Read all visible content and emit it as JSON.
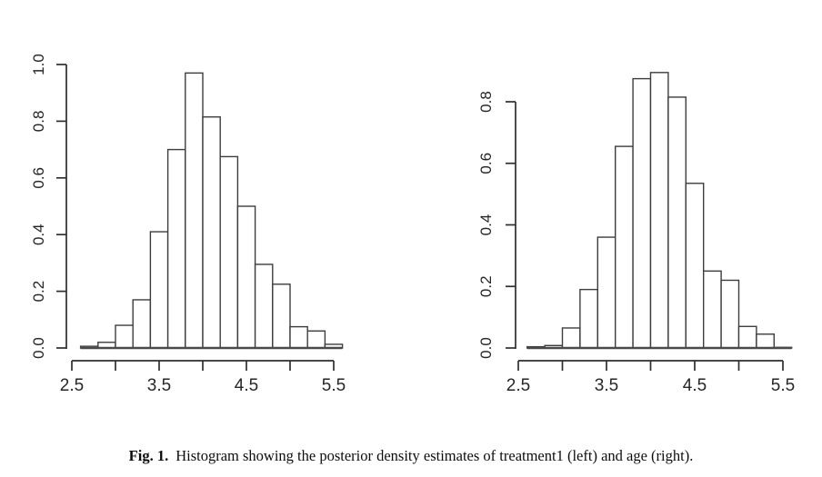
{
  "caption": {
    "label": "Fig. 1.",
    "text": "Histogram showing the posterior density estimates of treatment1 (left) and age (right)."
  },
  "style": {
    "axis_color": "#2e2e2e",
    "bar_stroke": "#3d3d3d",
    "bar_fill": "#ffffff",
    "baseline_color": "#4a4a4a",
    "text_color": "#262626"
  },
  "chart_data": [
    {
      "type": "bar",
      "subtype": "histogram",
      "variable": "treatment1",
      "position": "left",
      "title": "",
      "xlabel": "",
      "ylabel": "",
      "bin_start": 2.6,
      "bin_width": 0.2,
      "densities": [
        0.006,
        0.02,
        0.08,
        0.17,
        0.41,
        0.7,
        0.97,
        0.815,
        0.675,
        0.5,
        0.295,
        0.225,
        0.075,
        0.06,
        0.013
      ],
      "x_tick_positions": [
        2.5,
        3.0,
        3.5,
        4.0,
        4.5,
        5.0,
        5.5
      ],
      "x_tick_labels": [
        "2.5",
        "",
        "3.5",
        "",
        "4.5",
        "",
        "5.5"
      ],
      "y_tick_positions": [
        0.0,
        0.2,
        0.4,
        0.6,
        0.8,
        1.0
      ],
      "y_tick_labels": [
        "0.0",
        "0.2",
        "0.4",
        "0.6",
        "0.8",
        "1.0"
      ],
      "xlim": [
        2.5,
        5.6
      ],
      "ylim": [
        0,
        1.0
      ],
      "grid": false,
      "legend": false
    },
    {
      "type": "bar",
      "subtype": "histogram",
      "variable": "age",
      "position": "right",
      "title": "",
      "xlabel": "",
      "ylabel": "",
      "bin_start": 2.6,
      "bin_width": 0.2,
      "densities": [
        0.004,
        0.008,
        0.065,
        0.19,
        0.36,
        0.655,
        0.875,
        0.895,
        0.815,
        0.535,
        0.25,
        0.22,
        0.07,
        0.045,
        0.002
      ],
      "x_tick_positions": [
        2.5,
        3.0,
        3.5,
        4.0,
        4.5,
        5.0,
        5.5
      ],
      "x_tick_labels": [
        "2.5",
        "",
        "3.5",
        "",
        "4.5",
        "",
        "5.5"
      ],
      "y_tick_positions": [
        0.0,
        0.2,
        0.4,
        0.6,
        0.8
      ],
      "y_tick_labels": [
        "0.0",
        "0.2",
        "0.4",
        "0.6",
        "0.8"
      ],
      "xlim": [
        2.5,
        5.6
      ],
      "ylim": [
        0,
        0.9
      ],
      "grid": false,
      "legend": false
    }
  ]
}
